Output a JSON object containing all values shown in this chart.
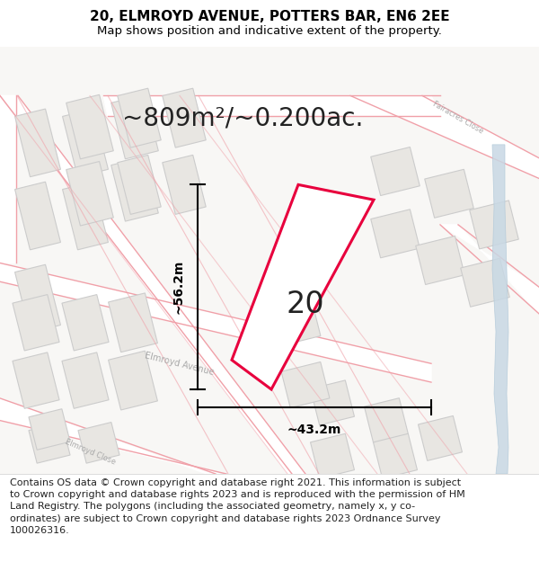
{
  "title": "20, ELMROYD AVENUE, POTTERS BAR, EN6 2EE",
  "subtitle": "Map shows position and indicative extent of the property.",
  "area_label": "~809m²/~0.200ac.",
  "number_label": "20",
  "dim_horizontal": "~43.2m",
  "dim_vertical": "~56.2m",
  "footer_text": "Contains OS data © Crown copyright and database right 2021. This information is subject to Crown copyright and database rights 2023 and is reproduced with the permission of HM Land Registry. The polygons (including the associated geometry, namely x, y co-ordinates) are subject to Crown copyright and database rights 2023 Ordnance Survey 100026316.",
  "map_bg": "#ffffff",
  "plot_color": "#e8003d",
  "road_fill": "#ffffff",
  "road_outline": "#f0a0a8",
  "building_fill": "#e8e6e2",
  "building_outline": "#cccccc",
  "water_color": "#c8dce8",
  "road_label_color": "#aaaaaa",
  "title_fontsize": 11,
  "subtitle_fontsize": 9.5,
  "area_fontsize": 20,
  "number_fontsize": 24,
  "dim_fontsize": 10,
  "footer_fontsize": 8
}
